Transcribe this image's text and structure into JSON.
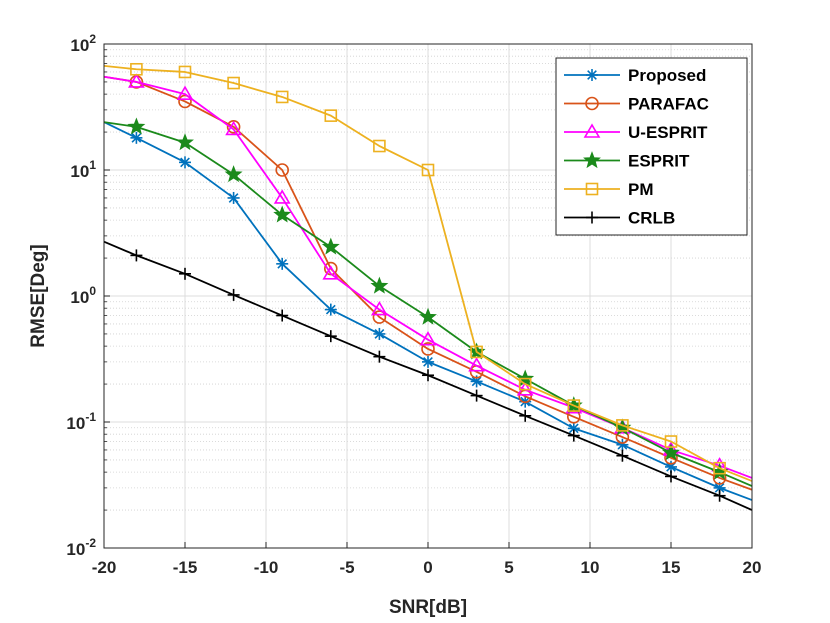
{
  "chart_data": {
    "type": "line",
    "xlabel": "SNR[dB]",
    "ylabel": "RMSE[Deg]",
    "yscale": "log",
    "xlim": [
      -20,
      20
    ],
    "ylim": [
      0.01,
      100
    ],
    "grid": true,
    "legend_position": "top-right",
    "x_ticks": [
      "-20",
      "-15",
      "-10",
      "-5",
      "0",
      "5",
      "10",
      "15",
      "20"
    ],
    "y_ticks": [
      {
        "base": "10",
        "exp": "-2"
      },
      {
        "base": "10",
        "exp": "-1"
      },
      {
        "base": "10",
        "exp": "0"
      },
      {
        "base": "10",
        "exp": "1"
      },
      {
        "base": "10",
        "exp": "2"
      }
    ],
    "x": [
      -20,
      -18,
      -15,
      -12,
      -9,
      -6,
      -3,
      0,
      3,
      6,
      9,
      12,
      15,
      18,
      20
    ],
    "series": [
      {
        "name": "Proposed",
        "color": "#0072BD",
        "marker": "asterisk",
        "values": [
          24,
          18,
          11.5,
          6,
          1.8,
          0.78,
          0.5,
          0.3,
          0.21,
          0.145,
          0.089,
          0.066,
          0.044,
          0.03,
          0.024
        ]
      },
      {
        "name": "PARAFAC",
        "color": "#D95319",
        "marker": "circle",
        "values": [
          55,
          50,
          35,
          22,
          10,
          1.65,
          0.68,
          0.38,
          0.25,
          0.16,
          0.11,
          0.076,
          0.052,
          0.036,
          0.029
        ]
      },
      {
        "name": "U-ESPRIT",
        "color": "#FF00FF",
        "marker": "triangle",
        "values": [
          55,
          50,
          40,
          21,
          6,
          1.5,
          0.78,
          0.45,
          0.28,
          0.18,
          0.13,
          0.09,
          0.06,
          0.045,
          0.036
        ]
      },
      {
        "name": "ESPRIT",
        "color": "#1B8A1B",
        "marker": "star",
        "values": [
          24,
          22,
          16.5,
          9.2,
          4.4,
          2.45,
          1.2,
          0.68,
          0.36,
          0.22,
          0.135,
          0.09,
          0.057,
          0.04,
          0.031
        ]
      },
      {
        "name": "PM",
        "color": "#EDB120",
        "marker": "square",
        "values": [
          67,
          63,
          60,
          49,
          38,
          27,
          15.5,
          10,
          0.36,
          0.2,
          0.135,
          0.094,
          0.07,
          0.043,
          0.034
        ]
      },
      {
        "name": "CRLB",
        "color": "#000000",
        "marker": "plus",
        "values": [
          2.7,
          2.1,
          1.5,
          1.02,
          0.7,
          0.48,
          0.33,
          0.235,
          0.162,
          0.112,
          0.078,
          0.054,
          0.037,
          0.026,
          0.02
        ]
      }
    ]
  }
}
